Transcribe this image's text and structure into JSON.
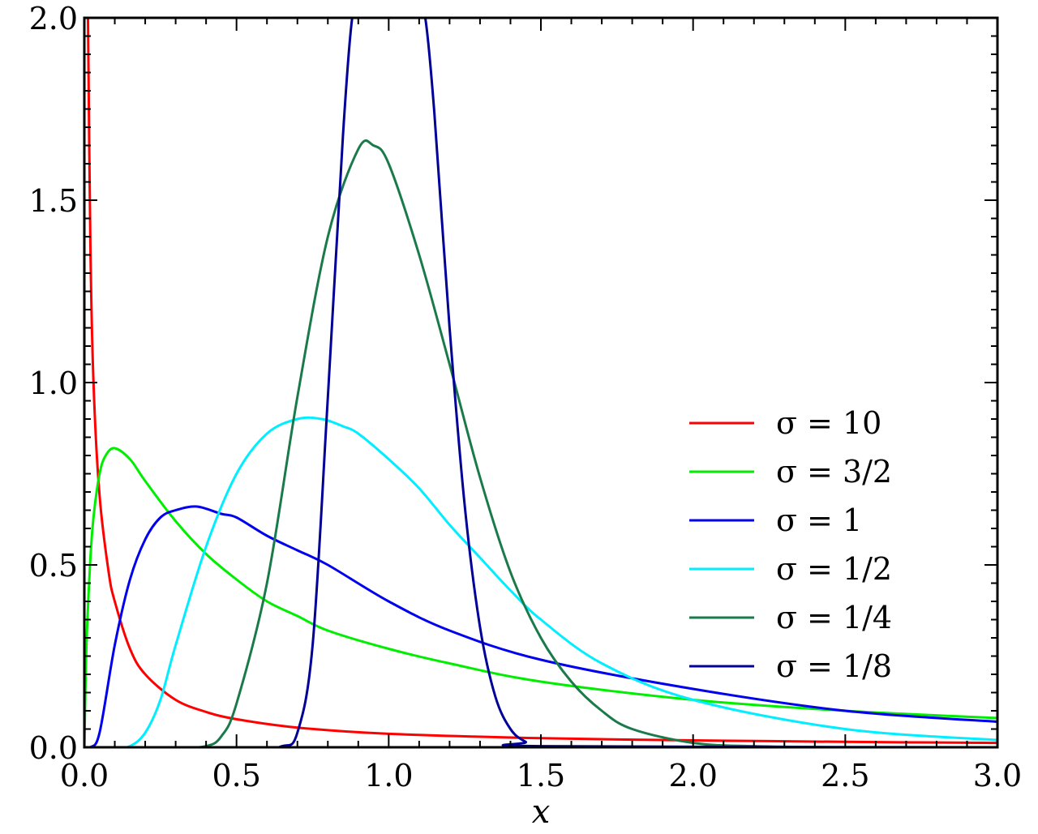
{
  "chart_data": {
    "type": "line",
    "title": "",
    "xlabel": "x",
    "ylabel": "",
    "xlim": [
      0,
      3
    ],
    "ylim": [
      0,
      2
    ],
    "x_ticks": [
      "0.0",
      "0.5",
      "1.0",
      "1.5",
      "2.0",
      "2.5",
      "3.0"
    ],
    "y_ticks": [
      "0.0",
      "0.5",
      "1.0",
      "1.5",
      "2.0"
    ],
    "grid": false,
    "legend_position": "right",
    "series": [
      {
        "name": "σ = 10",
        "color": "#ff0000",
        "x": [
          0.012,
          0.02,
          0.03,
          0.05,
          0.08,
          0.1,
          0.15,
          0.2,
          0.3,
          0.4,
          0.5,
          0.7,
          1.0,
          1.5,
          2.0,
          2.5,
          3.0
        ],
        "y": [
          2.0,
          1.37,
          1.0,
          0.69,
          0.48,
          0.4,
          0.27,
          0.2,
          0.13,
          0.097,
          0.077,
          0.054,
          0.037,
          0.025,
          0.019,
          0.015,
          0.012
        ]
      },
      {
        "name": "σ = 3/2",
        "color": "#00ee00",
        "x": [
          0.0,
          0.005,
          0.01,
          0.02,
          0.03,
          0.05,
          0.07,
          0.1,
          0.15,
          0.2,
          0.3,
          0.4,
          0.5,
          0.6,
          0.7,
          0.8,
          1.0,
          1.2,
          1.5,
          2.0,
          2.5,
          3.0
        ],
        "y": [
          0.0,
          0.22,
          0.35,
          0.52,
          0.63,
          0.75,
          0.8,
          0.82,
          0.79,
          0.73,
          0.62,
          0.53,
          0.46,
          0.4,
          0.36,
          0.32,
          0.27,
          0.23,
          0.18,
          0.13,
          0.1,
          0.08
        ]
      },
      {
        "name": "σ = 1",
        "color": "#0000ee",
        "x": [
          0.0,
          0.02,
          0.05,
          0.1,
          0.15,
          0.2,
          0.25,
          0.3,
          0.37,
          0.45,
          0.5,
          0.6,
          0.7,
          0.8,
          1.0,
          1.2,
          1.5,
          2.0,
          2.5,
          3.0
        ],
        "y": [
          0.0,
          0.0,
          0.04,
          0.28,
          0.46,
          0.57,
          0.63,
          0.65,
          0.66,
          0.64,
          0.63,
          0.58,
          0.54,
          0.5,
          0.4,
          0.32,
          0.24,
          0.16,
          0.1,
          0.07
        ]
      },
      {
        "name": "σ = 1/2",
        "color": "#00eeff",
        "x": [
          0.0,
          0.1,
          0.15,
          0.2,
          0.25,
          0.3,
          0.4,
          0.5,
          0.6,
          0.7,
          0.78,
          0.85,
          0.9,
          1.0,
          1.1,
          1.2,
          1.3,
          1.4,
          1.5,
          1.7,
          2.0,
          2.5,
          3.0
        ],
        "y": [
          0.0,
          0.0,
          0.003,
          0.04,
          0.13,
          0.28,
          0.55,
          0.75,
          0.86,
          0.9,
          0.9,
          0.88,
          0.86,
          0.79,
          0.71,
          0.61,
          0.52,
          0.43,
          0.35,
          0.23,
          0.13,
          0.05,
          0.02
        ]
      },
      {
        "name": "σ = 1/4",
        "color": "#1a7a4a",
        "x": [
          0.0,
          0.3,
          0.4,
          0.45,
          0.5,
          0.6,
          0.7,
          0.8,
          0.9,
          0.95,
          1.0,
          1.1,
          1.2,
          1.3,
          1.4,
          1.5,
          1.6,
          1.7,
          1.8,
          2.0,
          2.2,
          2.5,
          3.0
        ],
        "y": [
          0.0,
          0.0,
          0.003,
          0.03,
          0.12,
          0.45,
          0.96,
          1.4,
          1.64,
          1.65,
          1.6,
          1.35,
          1.05,
          0.74,
          0.48,
          0.3,
          0.18,
          0.1,
          0.05,
          0.012,
          0.003,
          0.0,
          0.0
        ]
      },
      {
        "name": "σ = 1/8",
        "color": "#000099",
        "x": [
          0.0,
          0.55,
          0.65,
          0.7,
          0.75,
          0.8,
          0.85,
          0.88,
          0.9,
          0.95,
          1.0,
          1.05,
          1.1,
          1.12,
          1.15,
          1.2,
          1.25,
          1.3,
          1.35,
          1.4,
          1.45,
          1.5,
          3.0
        ],
        "y": [
          0.0,
          0.0,
          0.003,
          0.04,
          0.28,
          0.96,
          1.68,
          2.0,
          2.0,
          2.0,
          2.0,
          2.0,
          2.0,
          2.0,
          1.74,
          1.15,
          0.66,
          0.33,
          0.14,
          0.05,
          0.015,
          0.003,
          0.0
        ]
      }
    ]
  }
}
